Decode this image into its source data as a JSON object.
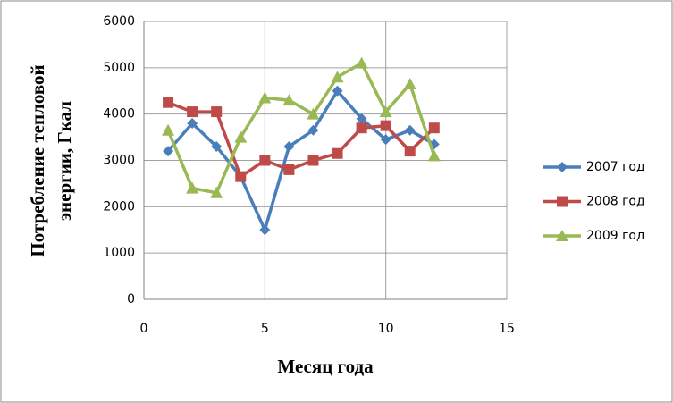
{
  "chart_data": {
    "type": "line",
    "xlabel": "Месяц года",
    "ylabel": [
      "Потребление тепловой",
      "энергии, Гкал"
    ],
    "x": [
      1,
      2,
      3,
      4,
      5,
      6,
      7,
      8,
      9,
      10,
      11,
      12
    ],
    "series": [
      {
        "name": "2007 год",
        "color": "#4a7ebb",
        "marker": "diamond",
        "values": [
          3200,
          3800,
          3300,
          2650,
          1500,
          3300,
          3650,
          4500,
          3900,
          3450,
          3650,
          3350
        ]
      },
      {
        "name": "2008 год",
        "color": "#be4b48",
        "marker": "square",
        "values": [
          4250,
          4050,
          4050,
          2650,
          3000,
          2800,
          3000,
          3150,
          3700,
          3750,
          3200,
          3700
        ]
      },
      {
        "name": "2009 год",
        "color": "#98b954",
        "marker": "triangle",
        "values": [
          3650,
          2400,
          2300,
          3500,
          4350,
          4300,
          4000,
          4800,
          5100,
          4050,
          4650,
          3100
        ]
      }
    ],
    "xlim": [
      0,
      15
    ],
    "xticks": [
      0,
      5,
      10,
      15
    ],
    "ylim": [
      0,
      6000
    ],
    "yticks": [
      0,
      1000,
      2000,
      3000,
      4000,
      5000,
      6000
    ],
    "grid": true,
    "legend": "right"
  }
}
